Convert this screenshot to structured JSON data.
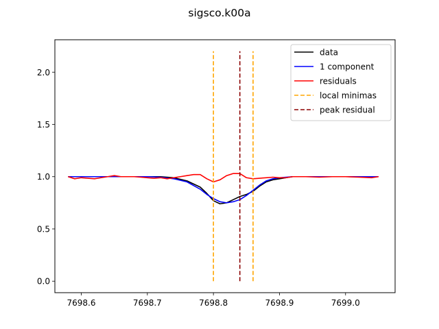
{
  "chart_data": {
    "type": "line",
    "title": "sigsco.k00a",
    "xlim": [
      7698.56,
      7699.075
    ],
    "ylim": [
      -0.11,
      2.31
    ],
    "xticks": [
      7698.6,
      7698.7,
      7698.8,
      7698.9,
      7699.0
    ],
    "xtick_labels": [
      "7698.6",
      "7698.7",
      "7698.8",
      "7698.9",
      "7699.0"
    ],
    "yticks": [
      0.0,
      0.5,
      1.0,
      1.5,
      2.0
    ],
    "ytick_labels": [
      "0.0",
      "0.5",
      "1.0",
      "1.5",
      "2.0"
    ],
    "grid": false,
    "legend": {
      "position": "top-right"
    },
    "series": [
      {
        "name": "data",
        "color": "#000000",
        "style": "solid",
        "x": [
          7698.58,
          7698.6,
          7698.62,
          7698.64,
          7698.66,
          7698.68,
          7698.7,
          7698.72,
          7698.74,
          7698.76,
          7698.78,
          7698.79,
          7698.8,
          7698.81,
          7698.82,
          7698.83,
          7698.84,
          7698.85,
          7698.86,
          7698.87,
          7698.88,
          7698.89,
          7698.9,
          7698.92,
          7698.94,
          7698.96,
          7698.98,
          7699.0,
          7699.02,
          7699.05
        ],
        "y": [
          1.0,
          1.0,
          1.0,
          1.0,
          1.0,
          1.0,
          1.0,
          1.0,
          0.99,
          0.96,
          0.9,
          0.84,
          0.77,
          0.74,
          0.75,
          0.78,
          0.81,
          0.83,
          0.86,
          0.91,
          0.95,
          0.97,
          0.98,
          1.0,
          1.0,
          1.0,
          1.0,
          1.0,
          1.0,
          1.0
        ]
      },
      {
        "name": "1 component",
        "color": "#0000ff",
        "style": "solid",
        "x": [
          7698.58,
          7698.6,
          7698.62,
          7698.64,
          7698.66,
          7698.68,
          7698.7,
          7698.72,
          7698.74,
          7698.76,
          7698.78,
          7698.79,
          7698.8,
          7698.81,
          7698.82,
          7698.83,
          7698.84,
          7698.85,
          7698.86,
          7698.87,
          7698.88,
          7698.89,
          7698.9,
          7698.92,
          7698.94,
          7698.96,
          7698.98,
          7699.0,
          7699.02,
          7699.05
        ],
        "y": [
          1.0,
          1.0,
          1.0,
          1.0,
          1.0,
          1.0,
          1.0,
          0.995,
          0.98,
          0.95,
          0.88,
          0.83,
          0.79,
          0.76,
          0.75,
          0.76,
          0.78,
          0.82,
          0.87,
          0.92,
          0.96,
          0.98,
          0.99,
          1.0,
          1.0,
          1.0,
          1.0,
          1.0,
          1.0,
          1.0
        ]
      },
      {
        "name": "residuals",
        "color": "#ff0000",
        "style": "solid",
        "x": [
          7698.58,
          7698.59,
          7698.6,
          7698.61,
          7698.62,
          7698.63,
          7698.64,
          7698.65,
          7698.66,
          7698.67,
          7698.68,
          7698.69,
          7698.7,
          7698.71,
          7698.72,
          7698.73,
          7698.74,
          7698.75,
          7698.76,
          7698.77,
          7698.78,
          7698.79,
          7698.8,
          7698.81,
          7698.82,
          7698.83,
          7698.84,
          7698.85,
          7698.86,
          7698.87,
          7698.88,
          7698.89,
          7698.9,
          7698.91,
          7698.92,
          7698.94,
          7698.96,
          7698.98,
          7699.0,
          7699.02,
          7699.04,
          7699.05
        ],
        "y": [
          1.0,
          0.98,
          0.99,
          0.985,
          0.98,
          0.99,
          1.0,
          1.01,
          1.0,
          1.0,
          1.0,
          0.995,
          0.99,
          0.985,
          0.99,
          0.98,
          0.99,
          1.0,
          1.01,
          1.02,
          1.02,
          0.98,
          0.95,
          0.97,
          1.01,
          1.03,
          1.03,
          0.99,
          0.98,
          0.985,
          0.99,
          0.995,
          0.99,
          0.99,
          1.0,
          1.0,
          0.995,
          1.0,
          1.0,
          0.995,
          0.99,
          1.0
        ]
      }
    ],
    "vlines": [
      {
        "name": "local minimas",
        "color": "#ffa500",
        "style": "dashed",
        "x": [
          7698.8,
          7698.86
        ],
        "y0": 0.0,
        "y1": 2.2
      },
      {
        "name": "peak residual",
        "color": "#8b0000",
        "style": "dashed",
        "x": [
          7698.84
        ],
        "y0": 0.0,
        "y1": 2.2
      }
    ]
  }
}
